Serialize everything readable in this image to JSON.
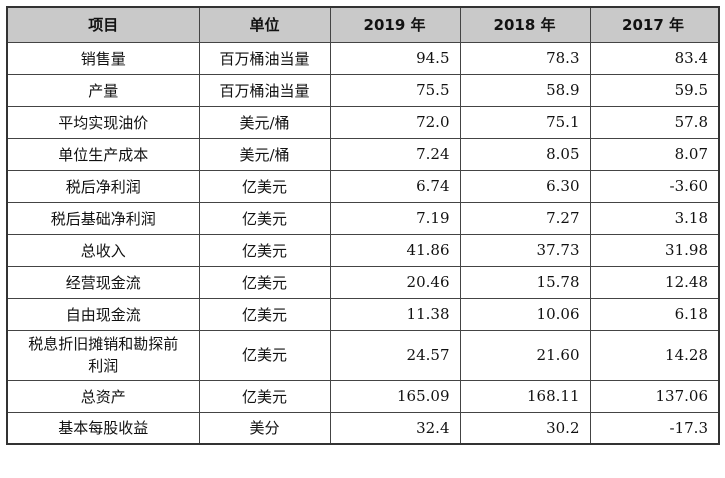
{
  "table": {
    "headers": [
      "项目",
      "单位",
      "2019 年",
      "2018 年",
      "2017 年"
    ],
    "rows": [
      {
        "item": "销售量",
        "unit": "百万桶油当量",
        "v2019": "94.5",
        "v2018": "78.3",
        "v2017": "83.4"
      },
      {
        "item": "产量",
        "unit": "百万桶油当量",
        "v2019": "75.5",
        "v2018": "58.9",
        "v2017": "59.5"
      },
      {
        "item": "平均实现油价",
        "unit": "美元/桶",
        "v2019": "72.0",
        "v2018": "75.1",
        "v2017": "57.8"
      },
      {
        "item": "单位生产成本",
        "unit": "美元/桶",
        "v2019": "7.24",
        "v2018": "8.05",
        "v2017": "8.07"
      },
      {
        "item": "税后净利润",
        "unit": "亿美元",
        "v2019": "6.74",
        "v2018": "6.30",
        "v2017": "-3.60"
      },
      {
        "item": "税后基础净利润",
        "unit": "亿美元",
        "v2019": "7.19",
        "v2018": "7.27",
        "v2017": "3.18"
      },
      {
        "item": "总收入",
        "unit": "亿美元",
        "v2019": "41.86",
        "v2018": "37.73",
        "v2017": "31.98"
      },
      {
        "item": "经营现金流",
        "unit": "亿美元",
        "v2019": "20.46",
        "v2018": "15.78",
        "v2017": "12.48"
      },
      {
        "item": "自由现金流",
        "unit": "亿美元",
        "v2019": "11.38",
        "v2018": "10.06",
        "v2017": "6.18"
      },
      {
        "item": "税息折旧摊销和勘探前利润",
        "unit": "亿美元",
        "v2019": "24.57",
        "v2018": "21.60",
        "v2017": "14.28"
      },
      {
        "item": "总资产",
        "unit": "亿美元",
        "v2019": "165.09",
        "v2018": "168.11",
        "v2017": "137.06"
      },
      {
        "item": "基本每股收益",
        "unit": "美分",
        "v2019": "32.4",
        "v2018": "30.2",
        "v2017": "-17.3"
      }
    ]
  }
}
